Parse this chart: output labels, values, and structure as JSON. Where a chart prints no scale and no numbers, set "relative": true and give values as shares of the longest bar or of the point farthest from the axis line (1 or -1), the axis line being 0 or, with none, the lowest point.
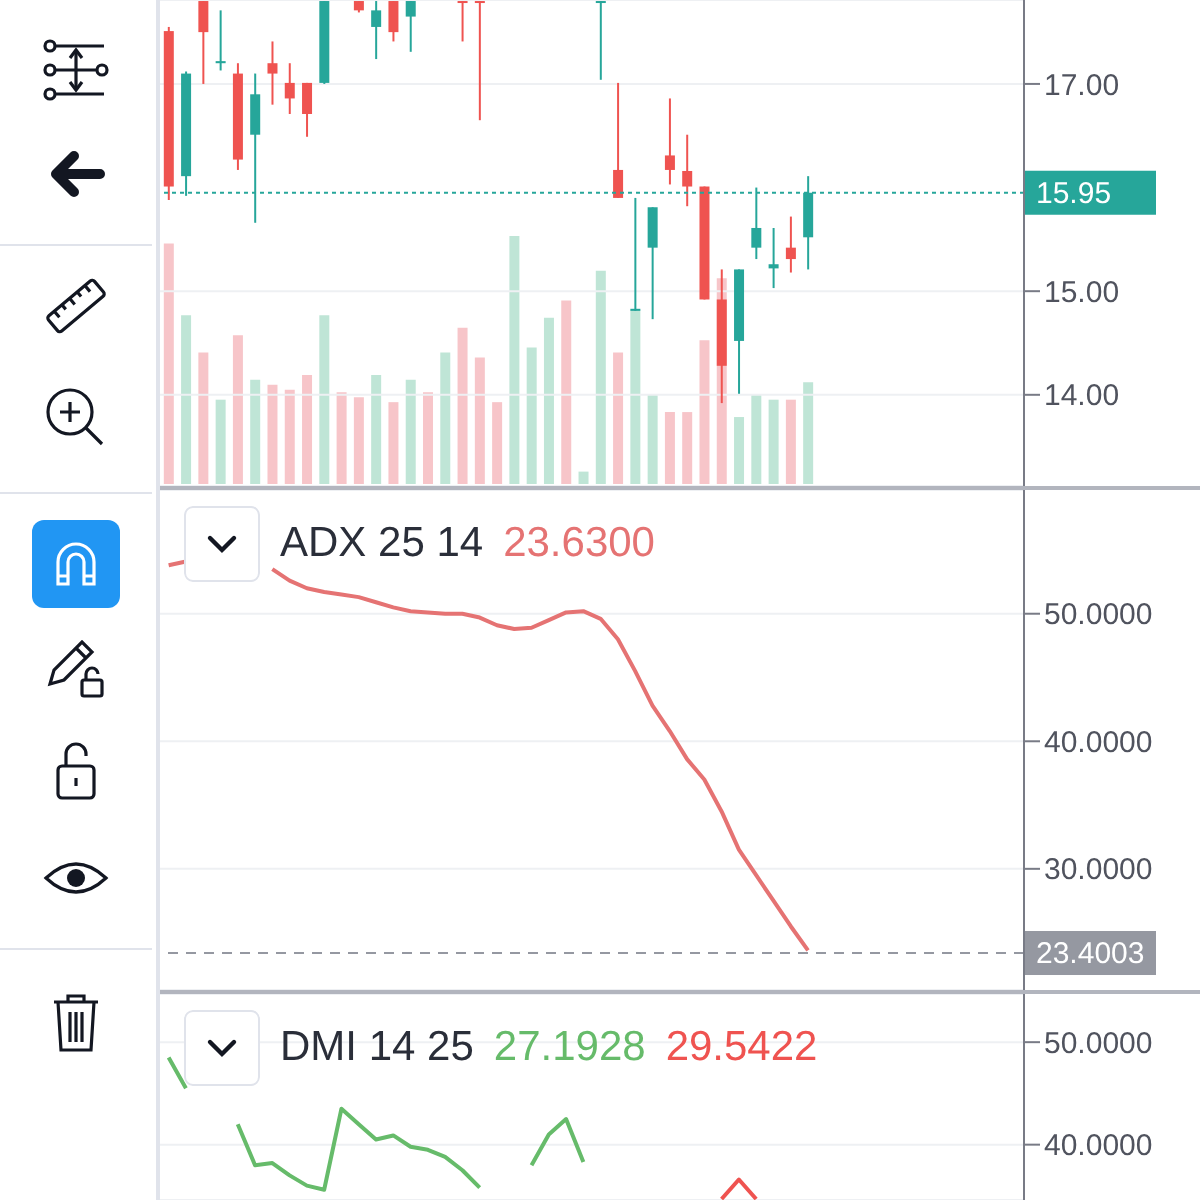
{
  "chart_data": [
    {
      "type": "candlestick",
      "categories": [
        null,
        null,
        null,
        null,
        null,
        null,
        null,
        null,
        null,
        null,
        null,
        null,
        null,
        null,
        null,
        null,
        null,
        null,
        null,
        null,
        null,
        null,
        null,
        null,
        null,
        null,
        null,
        null,
        null,
        null,
        null,
        null,
        null,
        null,
        null,
        null,
        null,
        null,
        null,
        null,
        null,
        null,
        null,
        null,
        null,
        null,
        null,
        null,
        null,
        null
      ],
      "ohlc": [
        [
          17.51,
          17.55,
          15.88,
          16.01
        ],
        [
          16.11,
          17.12,
          15.92,
          17.1
        ],
        [
          17.8,
          17.8,
          17.0,
          17.5
        ],
        [
          17.2,
          17.71,
          17.13,
          17.22
        ],
        [
          17.1,
          17.2,
          16.17,
          16.27
        ],
        [
          16.51,
          17.1,
          15.66,
          16.9
        ],
        [
          17.2,
          17.41,
          16.8,
          17.1
        ],
        [
          17.01,
          17.2,
          16.71,
          16.86
        ],
        [
          17.01,
          17.01,
          16.49,
          16.71
        ],
        [
          17.01,
          17.8,
          17.0,
          17.8
        ],
        null,
        [
          17.8,
          17.8,
          17.69,
          17.71
        ],
        [
          17.55,
          17.8,
          17.24,
          17.71
        ],
        [
          17.8,
          17.8,
          17.41,
          17.5
        ],
        [
          17.65,
          17.8,
          17.31,
          17.8
        ],
        null,
        null,
        [
          17.8,
          17.8,
          17.41,
          17.8
        ],
        [
          17.8,
          17.8,
          16.65,
          17.8
        ],
        null,
        null,
        null,
        null,
        null,
        null,
        [
          17.8,
          17.8,
          17.04,
          17.8
        ],
        [
          16.17,
          17.01,
          15.9,
          15.9
        ],
        [
          14.81,
          15.9,
          14.81,
          14.83
        ],
        [
          15.42,
          15.81,
          14.73,
          15.81
        ],
        [
          16.31,
          16.86,
          16.03,
          16.17
        ],
        [
          16.16,
          16.51,
          15.82,
          16.01
        ],
        [
          16.01,
          16.01,
          14.92,
          14.92
        ],
        [
          14.92,
          15.21,
          13.92,
          14.28
        ],
        [
          14.52,
          15.21,
          14.01,
          15.21
        ],
        [
          15.42,
          16.0,
          15.31,
          15.61
        ],
        [
          15.22,
          15.61,
          15.03,
          15.26
        ],
        [
          15.42,
          15.72,
          15.18,
          15.31
        ],
        [
          15.52,
          16.11,
          15.21,
          15.95
        ],
        null,
        null,
        null,
        null,
        null,
        null,
        null,
        null,
        null,
        null,
        null,
        null
      ],
      "colors": [
        "#ef5350",
        "#26a69a",
        "#ef5350",
        "#26a69a",
        "#ef5350",
        "#26a69a",
        "#ef5350",
        "#ef5350",
        "#ef5350",
        "#26a69a",
        null,
        "#ef5350",
        "#26a69a",
        "#ef5350",
        "#26a69a",
        null,
        null,
        "#ef5350",
        "#ef5350",
        null,
        null,
        null,
        null,
        null,
        null,
        "#26a69a",
        "#ef5350",
        "#26a69a",
        "#26a69a",
        "#ef5350",
        "#ef5350",
        "#ef5350",
        "#ef5350",
        "#26a69a",
        "#26a69a",
        "#26a69a",
        "#ef5350",
        "#26a69a",
        null,
        null,
        null,
        null,
        null,
        null,
        null,
        null,
        null,
        null,
        null,
        null
      ],
      "ylim": [
        13.12,
        17.81
      ],
      "yticks": [
        {
          "value": 14,
          "label": "14.00"
        },
        {
          "value": 15,
          "label": "15.00"
        },
        {
          "value": 17,
          "label": "17.00"
        }
      ],
      "ref_lines": [
        {
          "axis": "y",
          "value": 15.95,
          "label": "15.95",
          "color": "#26a69a",
          "line_style": "dotted"
        }
      ],
      "grid": "y"
    },
    {
      "type": "bar",
      "relative": true,
      "categories": [
        null,
        null,
        null,
        null,
        null,
        null,
        null,
        null,
        null,
        null,
        null,
        null,
        null,
        null,
        null,
        null,
        null,
        null,
        null,
        null,
        null,
        null,
        null,
        null,
        null,
        null,
        null,
        null,
        null,
        null,
        null,
        null,
        null,
        null,
        null,
        null,
        null,
        null,
        null,
        null,
        null,
        null,
        null,
        null,
        null,
        null,
        null,
        null,
        null,
        null
      ],
      "values": [
        0.97,
        0.68,
        0.53,
        0.34,
        0.6,
        0.42,
        0.4,
        0.38,
        0.44,
        0.68,
        0.37,
        0.35,
        0.44,
        0.33,
        0.42,
        0.37,
        0.53,
        0.63,
        0.51,
        0.33,
        1,
        0.55,
        0.67,
        0.74,
        0.05,
        0.86,
        0.53,
        0.7,
        0.36,
        0.29,
        0.29,
        0.58,
        0.83,
        0.27,
        0.36,
        0.34,
        0.34,
        0.41,
        null,
        null,
        null,
        null,
        null,
        null,
        null,
        null,
        null,
        null,
        null,
        null
      ],
      "colors": [
        "#f7c5c9",
        "#bfe5d6",
        "#f7c5c9",
        "#bfe5d6",
        "#f7c5c9",
        "#bfe5d6",
        "#f7c5c9",
        "#f7c5c9",
        "#f7c5c9",
        "#bfe5d6",
        "#f7c5c9",
        "#f7c5c9",
        "#bfe5d6",
        "#f7c5c9",
        "#bfe5d6",
        "#f7c5c9",
        "#bfe5d6",
        "#f7c5c9",
        "#f7c5c9",
        "#f7c5c9",
        "#bfe5d6",
        "#bfe5d6",
        "#bfe5d6",
        "#f7c5c9",
        "#bfe5d6",
        "#bfe5d6",
        "#f7c5c9",
        "#bfe5d6",
        "#bfe5d6",
        "#f7c5c9",
        "#f7c5c9",
        "#f7c5c9",
        "#f7c5c9",
        "#bfe5d6",
        "#bfe5d6",
        "#bfe5d6",
        "#f7c5c9",
        "#bfe5d6",
        null,
        null,
        null,
        null,
        null,
        null,
        null,
        null,
        null,
        null,
        null,
        null
      ]
    },
    {
      "type": "line",
      "title": "ADX 25 14",
      "annotations": [
        "23.6300"
      ],
      "marker": "none",
      "categories": [
        null,
        null,
        null,
        null,
        null,
        null,
        null,
        null,
        null,
        null,
        null,
        null,
        null,
        null,
        null,
        null,
        null,
        null,
        null,
        null,
        null,
        null,
        null,
        null,
        null,
        null,
        null,
        null,
        null,
        null,
        null,
        null,
        null,
        null,
        null,
        null,
        null,
        null,
        null,
        null,
        null,
        null,
        null,
        null,
        null,
        null,
        null,
        null,
        null,
        null
      ],
      "series": [
        {
          "color": "#e57373",
          "values": [
            53.8,
            54.1,
            null,
            null,
            null,
            null,
            53.5,
            52.6,
            52.0,
            51.7,
            51.5,
            51.3,
            50.9,
            50.5,
            50.2,
            50.1,
            50.0,
            50.0,
            49.7,
            49.1,
            48.8,
            48.9,
            49.5,
            50.1,
            50.2,
            49.6,
            48.0,
            45.5,
            42.8,
            40.8,
            38.6,
            37.0,
            34.5,
            31.5,
            29.5,
            27.5,
            25.5,
            23.6,
            null,
            null,
            null,
            null,
            null,
            null,
            null,
            null,
            null,
            null,
            null,
            null
          ]
        }
      ],
      "ylim": [
        20.5,
        59.7
      ],
      "yticks": [
        {
          "value": 30,
          "label": "30.0000"
        },
        {
          "value": 40,
          "label": "40.0000"
        },
        {
          "value": 50,
          "label": "50.0000"
        }
      ],
      "ref_lines": [
        {
          "axis": "y",
          "value": 23.4003,
          "label": "23.4003",
          "color": "#9598a1",
          "line_style": "dashed"
        }
      ],
      "grid": "y"
    },
    {
      "type": "line",
      "title": "DMI 14 25",
      "annotations": [
        "27.1928",
        "29.5422"
      ],
      "marker": "none",
      "categories": [
        null,
        null,
        null,
        null,
        null,
        null,
        null,
        null,
        null,
        null,
        null,
        null,
        null,
        null,
        null,
        null,
        null,
        null,
        null,
        null,
        null,
        null,
        null,
        null,
        null,
        null,
        null,
        null,
        null,
        null,
        null,
        null,
        null,
        null,
        null,
        null,
        null,
        null,
        null,
        null,
        null,
        null,
        null,
        null,
        null,
        null,
        null,
        null,
        null,
        null
      ],
      "series": [
        {
          "color": "#66bb6a",
          "values": [
            48.5,
            45.5,
            null,
            null,
            42.0,
            38.0,
            38.2,
            37.0,
            36.0,
            35.6,
            43.5,
            42.0,
            40.5,
            40.9,
            39.8,
            39.5,
            38.8,
            37.5,
            35.8,
            null,
            null,
            38.0,
            41.0,
            42.5,
            38.3,
            null,
            null,
            null,
            null,
            null,
            null,
            null,
            null,
            null,
            null,
            null,
            null,
            null,
            null,
            null,
            null,
            null,
            null,
            null,
            null,
            null,
            null,
            null,
            null,
            null
          ]
        },
        {
          "color": "#ef5350",
          "values": [
            null,
            null,
            null,
            null,
            null,
            null,
            null,
            null,
            null,
            null,
            null,
            null,
            null,
            null,
            null,
            null,
            null,
            null,
            null,
            null,
            null,
            null,
            null,
            null,
            null,
            null,
            null,
            null,
            null,
            null,
            null,
            null,
            34.7,
            36.6,
            34.7,
            null,
            null,
            null,
            null,
            null,
            null,
            null,
            null,
            null,
            null,
            null,
            null,
            null,
            null,
            null
          ]
        }
      ],
      "ylim": [
        34.6,
        54.7
      ],
      "yticks": [
        {
          "value": 40,
          "label": "40.0000"
        },
        {
          "value": 50,
          "label": "50.0000"
        }
      ],
      "grid": "y"
    }
  ]
}
